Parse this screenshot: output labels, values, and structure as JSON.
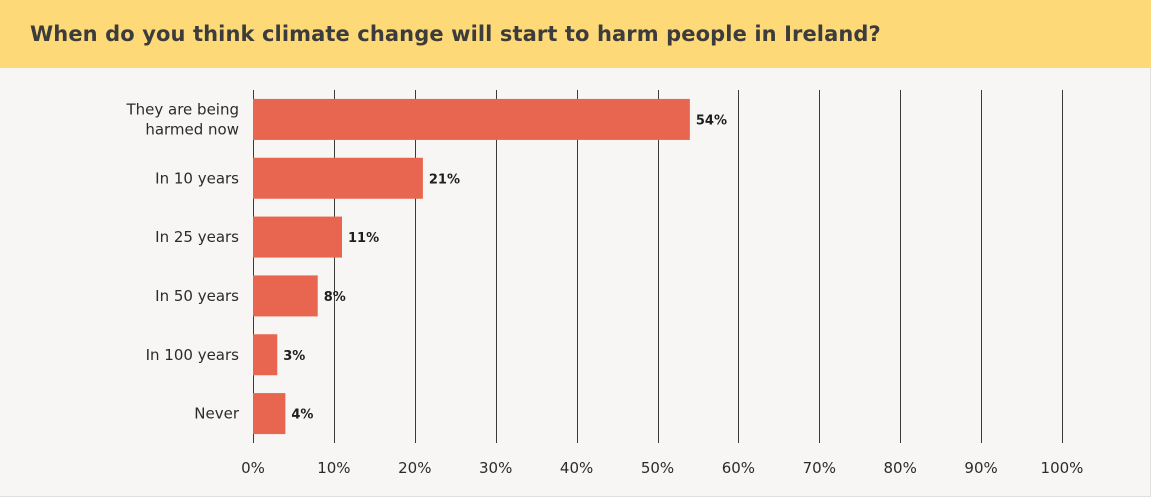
{
  "header": {
    "title": "When do you think climate change will start to harm people in Ireland?"
  },
  "colors": {
    "header_bg": "#fed978",
    "bar": "#e8664f",
    "grid": "#3a3a3a",
    "background": "#f7f6f4"
  },
  "chart_data": {
    "type": "bar",
    "orientation": "horizontal",
    "title": "When do you think climate change will start to harm people in Ireland?",
    "categories": [
      [
        "They are being",
        "harmed now"
      ],
      [
        "In 10 years"
      ],
      [
        "In 25 years"
      ],
      [
        "In 50 years"
      ],
      [
        "In 100 years"
      ],
      [
        "Never"
      ]
    ],
    "values": [
      54,
      21,
      11,
      8,
      3,
      4
    ],
    "data_labels": [
      "54%",
      "21%",
      "11%",
      "8%",
      "3%",
      "4%"
    ],
    "xlim": [
      0,
      100
    ],
    "x_ticks": [
      0,
      10,
      20,
      30,
      40,
      50,
      60,
      70,
      80,
      90,
      100
    ],
    "x_tick_labels": [
      "0%",
      "10%",
      "20%",
      "30%",
      "40%",
      "50%",
      "60%",
      "70%",
      "80%",
      "90%",
      "100%"
    ],
    "grid": true,
    "legend": "none"
  }
}
